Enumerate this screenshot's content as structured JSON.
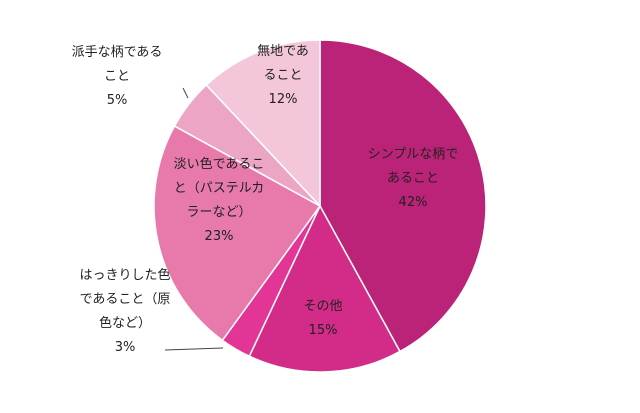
{
  "chart_data": {
    "type": "pie",
    "title": "",
    "start": "12 o'clock, clockwise",
    "legend": "none (labels on/next to slices)",
    "slices": [
      {
        "label_lines": [
          "シンプルな柄で",
          "あること"
        ],
        "value": 42,
        "value_text": "42%",
        "color": "#ba2377",
        "placement": "inside"
      },
      {
        "label_lines": [
          "その他"
        ],
        "value": 15,
        "value_text": "15%",
        "color": "#d32c88",
        "placement": "inside"
      },
      {
        "label_lines": [
          "はっきりした色",
          "であること（原",
          "色など）"
        ],
        "value": 3,
        "value_text": "3%",
        "color": "#e33596",
        "placement": "outside-left"
      },
      {
        "label_lines": [
          "淡い色であるこ",
          "と（パステルカ",
          "ラーなど）"
        ],
        "value": 23,
        "value_text": "23%",
        "color": "#e77aab",
        "placement": "inside"
      },
      {
        "label_lines": [
          "派手な柄である",
          "こと"
        ],
        "value": 5,
        "value_text": "5%",
        "color": "#eca5c4",
        "placement": "outside-left"
      },
      {
        "label_lines": [
          "無地であ",
          "ること"
        ],
        "value": 12,
        "value_text": "12%",
        "color": "#f3c6da",
        "placement": "inside"
      }
    ]
  }
}
